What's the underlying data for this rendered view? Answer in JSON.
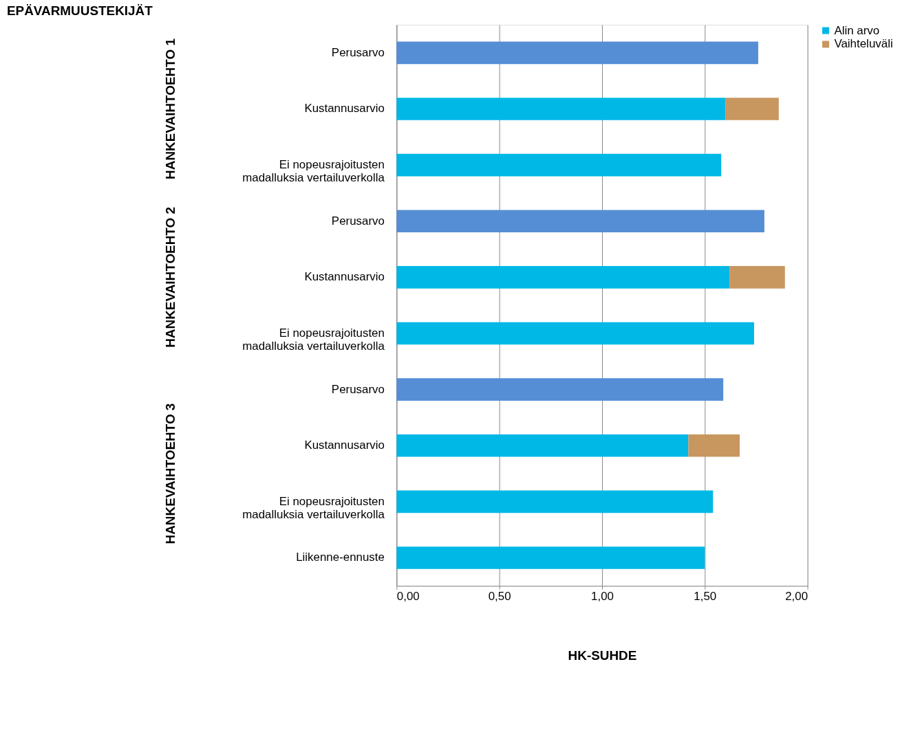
{
  "chart_data": {
    "type": "bar",
    "orientation": "horizontal",
    "stacked": true,
    "title": "EPÄVARMUUSTEKIJÄT",
    "xlabel": "HK-SUHDE",
    "annotations": [
      "HANKEVAIHTOEHTO 1",
      "HANKEVAIHTOEHTO 2",
      "HANKEVAIHTOEHTO 3"
    ],
    "categories": [
      "Perusarvo",
      "Kustannusarvio",
      "Ei nopeusrajoitusten madalluksia vertailuverkolla",
      "Perusarvo",
      "Kustannusarvio",
      "Ei nopeusrajoitusten madalluksia vertailuverkolla",
      "Perusarvo",
      "Kustannusarvio",
      "Ei nopeusrajoitusten madalluksia vertailuverkolla",
      "Liikenne-ennuste"
    ],
    "series": [
      {
        "color": "#558ed5",
        "values": [
          1.76,
          null,
          null,
          1.79,
          null,
          null,
          1.59,
          null,
          null,
          null
        ]
      },
      {
        "name": "Alin arvo",
        "color": "#00b8e6",
        "values": [
          null,
          1.6,
          1.58,
          null,
          1.62,
          1.74,
          null,
          1.42,
          1.54,
          1.5
        ]
      },
      {
        "name": "Vaihteluväli",
        "color": "#c8965f",
        "values": [
          null,
          0.26,
          null,
          null,
          0.27,
          null,
          null,
          0.25,
          null,
          null
        ]
      }
    ],
    "xlim": [
      0,
      2
    ],
    "xticks": [
      {
        "value": 0,
        "label": "0,00"
      },
      {
        "value": 0.5,
        "label": "0,50"
      },
      {
        "value": 1,
        "label": "1,00"
      },
      {
        "value": 1.5,
        "label": "1,50"
      },
      {
        "value": 2,
        "label": "2,00"
      }
    ],
    "grid": "x",
    "legend": "right"
  }
}
